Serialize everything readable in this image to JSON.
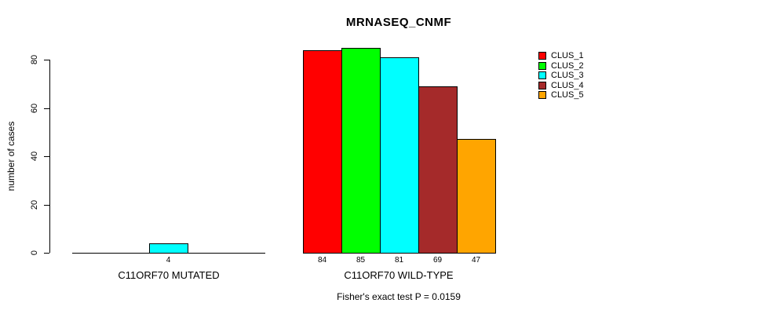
{
  "chart_data": {
    "type": "bar",
    "title": "MRNASEQ_CNMF",
    "ylabel": "number of cases",
    "xlabel": "",
    "categories": [
      "C11ORF70 MUTATED",
      "C11ORF70 WILD-TYPE"
    ],
    "series": [
      {
        "name": "CLUS_1",
        "color": "#FF0000",
        "values": [
          0,
          84
        ]
      },
      {
        "name": "CLUS_2",
        "color": "#00FF00",
        "values": [
          0,
          85
        ]
      },
      {
        "name": "CLUS_3",
        "color": "#00FFFF",
        "values": [
          4,
          81
        ]
      },
      {
        "name": "CLUS_4",
        "color": "#A52A2A",
        "values": [
          0,
          69
        ]
      },
      {
        "name": "CLUS_5",
        "color": "#FFA500",
        "values": [
          0,
          47
        ]
      }
    ],
    "yticks": [
      0,
      20,
      40,
      60,
      80
    ],
    "ylim": [
      0,
      85
    ],
    "grid": false,
    "legend_position": "right",
    "show_value_labels": true,
    "value_labels_shown": [
      "4",
      "84",
      "85",
      "81",
      "69",
      "47"
    ],
    "annotation": "Fisher's exact test P = 0.0159"
  }
}
